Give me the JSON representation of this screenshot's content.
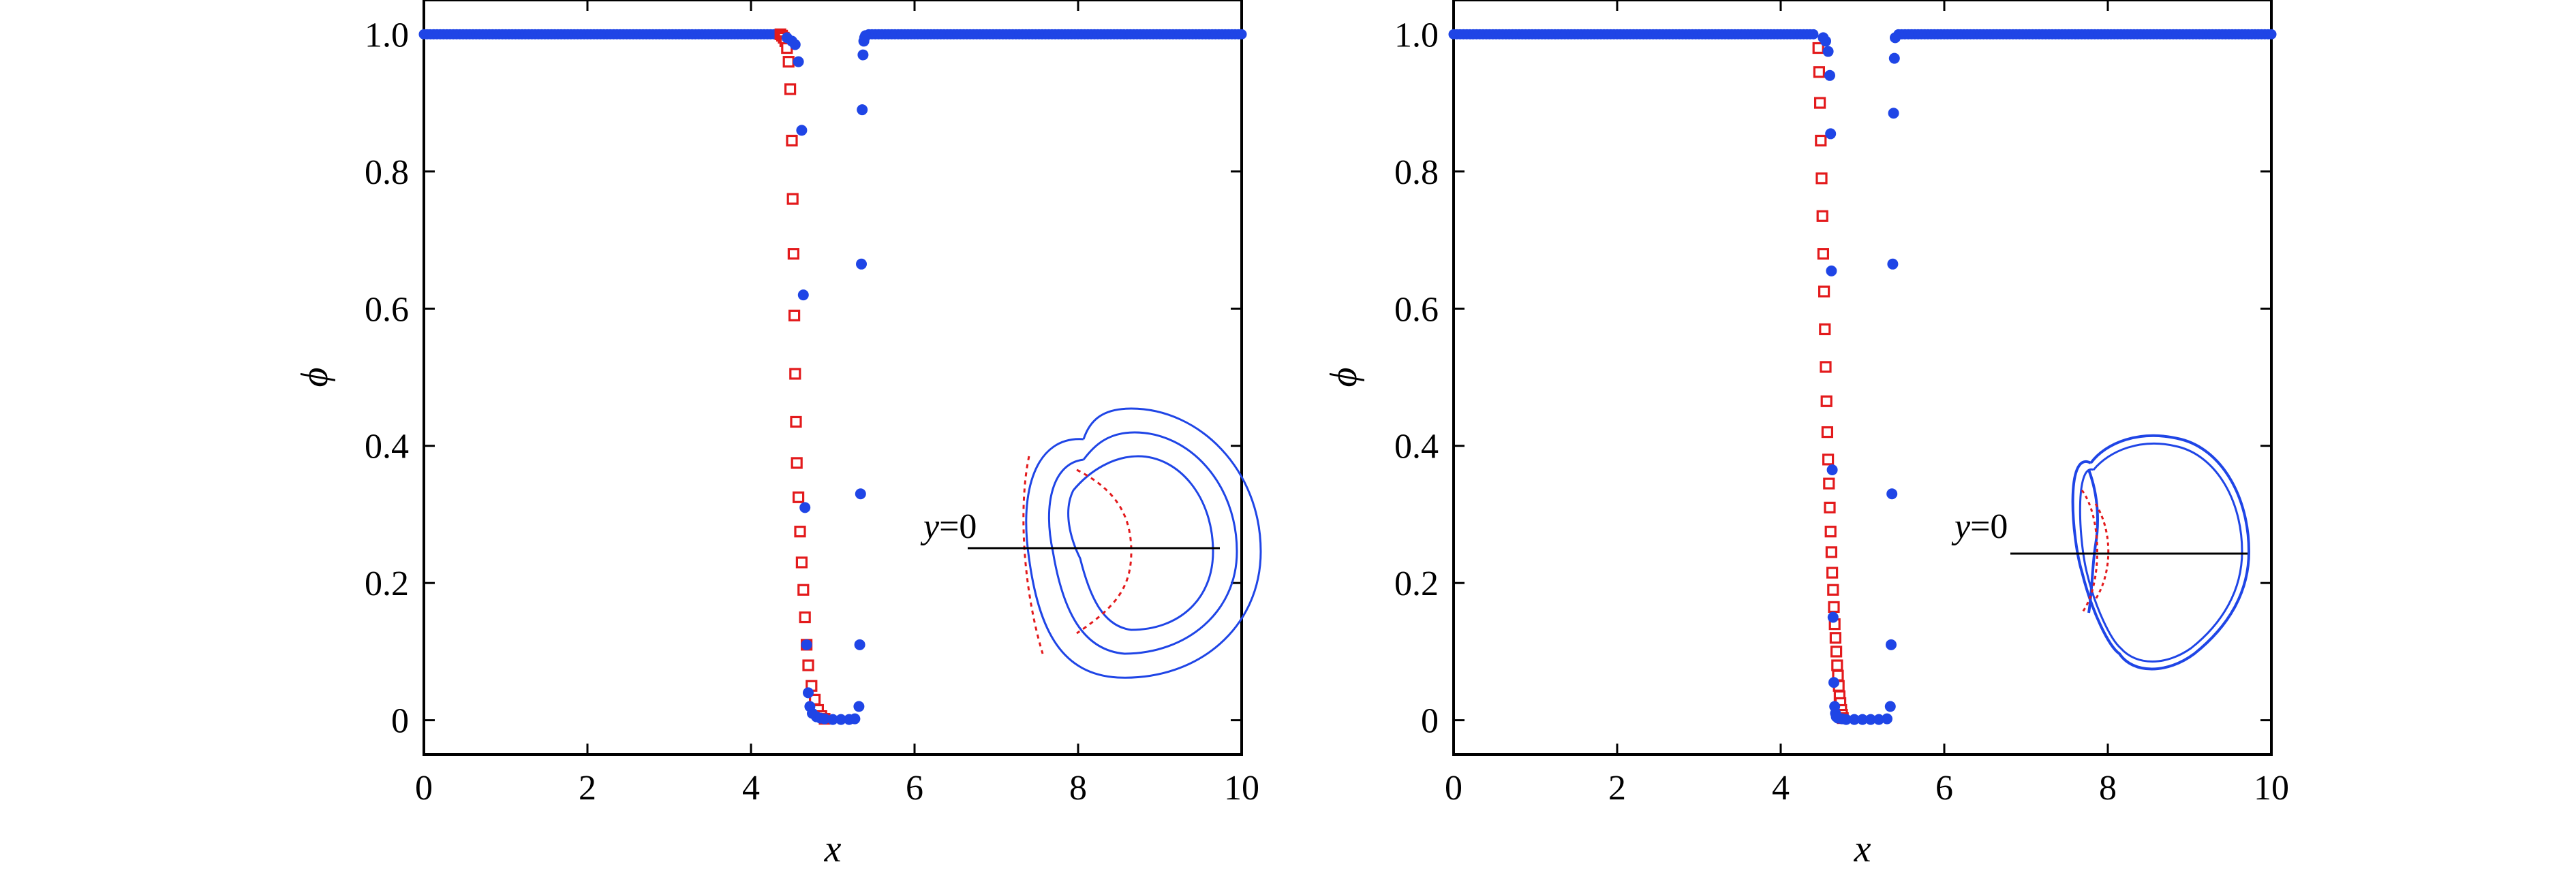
{
  "chart_data": [
    {
      "type": "scatter",
      "title": "",
      "xlabel": "x",
      "ylabel": "ϕ",
      "xlim": [
        0,
        10
      ],
      "ylim": [
        -0.05,
        1.05
      ],
      "xticks": [
        "0",
        "2",
        "4",
        "6",
        "8",
        "10"
      ],
      "yticks": [
        "0",
        "0.2",
        "0.4",
        "0.6",
        "0.8",
        "1.0"
      ],
      "grid": false,
      "legend": "none",
      "series": [
        {
          "marker": "filled-circle",
          "color": "#1f45e6",
          "x": [
            4.44,
            4.5,
            4.54,
            4.58,
            4.62,
            4.64,
            4.66,
            4.68,
            4.7,
            4.72,
            4.75,
            4.8,
            4.85,
            4.9,
            5.0,
            5.1,
            5.2,
            5.27,
            5.32,
            5.33,
            5.34,
            5.35,
            5.36,
            5.37,
            5.38,
            5.39,
            5.4
          ],
          "y": [
            0.995,
            0.99,
            0.985,
            0.96,
            0.86,
            0.62,
            0.31,
            0.11,
            0.04,
            0.02,
            0.01,
            0.005,
            0.003,
            0.002,
            0.001,
            0.001,
            0.001,
            0.002,
            0.02,
            0.11,
            0.33,
            0.665,
            0.89,
            0.97,
            0.99,
            0.995,
            0.998
          ]
        },
        {
          "marker": "open-square",
          "color": "#e31a1c",
          "x": [
            4.36,
            4.38,
            4.4,
            4.42,
            4.44,
            4.46,
            4.48,
            4.5,
            4.51,
            4.52,
            4.53,
            4.54,
            4.55,
            4.56,
            4.58,
            4.6,
            4.62,
            4.64,
            4.66,
            4.68,
            4.7,
            4.74,
            4.78,
            4.82,
            4.86,
            4.9
          ],
          "y": [
            1.0,
            0.998,
            0.995,
            0.99,
            0.98,
            0.96,
            0.92,
            0.845,
            0.76,
            0.68,
            0.59,
            0.505,
            0.435,
            0.375,
            0.325,
            0.275,
            0.23,
            0.19,
            0.15,
            0.11,
            0.08,
            0.05,
            0.03,
            0.015,
            0.006,
            0.002
          ]
        }
      ],
      "inset": {
        "label_var": "y",
        "label_rest": "=0",
        "shape": "three nested kidney-shaped contours with dashed red segments"
      }
    },
    {
      "type": "scatter",
      "title": "",
      "xlabel": "x",
      "ylabel": "ϕ",
      "xlim": [
        0,
        10
      ],
      "ylim": [
        -0.05,
        1.05
      ],
      "xticks": [
        "0",
        "2",
        "4",
        "6",
        "8",
        "10"
      ],
      "yticks": [
        "0",
        "0.2",
        "0.4",
        "0.6",
        "0.8",
        "1.0"
      ],
      "grid": false,
      "legend": "none",
      "series": [
        {
          "marker": "filled-circle",
          "color": "#1f45e6",
          "x": [
            4.52,
            4.55,
            4.58,
            4.6,
            4.61,
            4.62,
            4.63,
            4.64,
            4.65,
            4.66,
            4.67,
            4.68,
            4.7,
            4.75,
            4.8,
            4.9,
            5.0,
            5.1,
            5.2,
            5.3,
            5.34,
            5.35,
            5.36,
            5.37,
            5.38,
            5.39,
            5.4
          ],
          "y": [
            0.995,
            0.99,
            0.975,
            0.94,
            0.855,
            0.655,
            0.365,
            0.15,
            0.055,
            0.02,
            0.01,
            0.005,
            0.003,
            0.002,
            0.001,
            0.001,
            0.001,
            0.001,
            0.001,
            0.002,
            0.02,
            0.11,
            0.33,
            0.665,
            0.885,
            0.965,
            0.995
          ]
        },
        {
          "marker": "open-square",
          "color": "#e31a1c",
          "x": [
            4.46,
            4.47,
            4.48,
            4.49,
            4.5,
            4.51,
            4.52,
            4.53,
            4.54,
            4.55,
            4.56,
            4.57,
            4.58,
            4.59,
            4.6,
            4.61,
            4.62,
            4.63,
            4.64,
            4.65,
            4.66,
            4.67,
            4.68,
            4.69,
            4.7,
            4.71,
            4.72,
            4.73,
            4.74,
            4.75,
            4.76
          ],
          "y": [
            0.98,
            0.945,
            0.9,
            0.845,
            0.79,
            0.735,
            0.68,
            0.625,
            0.57,
            0.515,
            0.465,
            0.42,
            0.38,
            0.345,
            0.31,
            0.275,
            0.245,
            0.215,
            0.19,
            0.165,
            0.14,
            0.12,
            0.1,
            0.08,
            0.065,
            0.05,
            0.035,
            0.025,
            0.015,
            0.008,
            0.003
          ]
        }
      ],
      "inset": {
        "label_var": "y",
        "label_rest": "=0",
        "shape": "thin kidney-shaped contour with dashed red inner segment"
      }
    }
  ]
}
